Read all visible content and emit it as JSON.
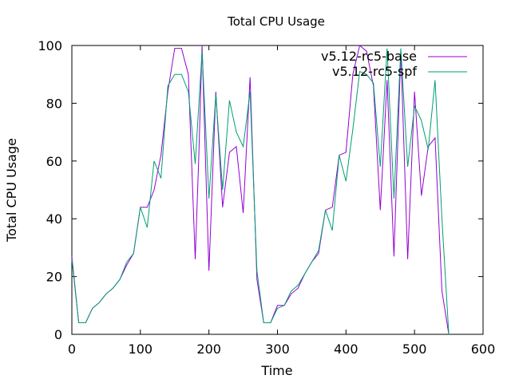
{
  "chart_data": {
    "type": "line",
    "title": "Total CPU Usage",
    "xlabel": "Time",
    "ylabel": "Total CPU Usage",
    "xlim": [
      0,
      600
    ],
    "ylim": [
      0,
      100
    ],
    "xticks": [
      0,
      100,
      200,
      300,
      400,
      500,
      600
    ],
    "yticks": [
      0,
      20,
      40,
      60,
      80,
      100
    ],
    "grid": false,
    "legend_position": "top-right",
    "series": [
      {
        "name": "v5.12-rc5-base",
        "color": "#9400d3",
        "x": [
          0,
          10,
          20,
          30,
          40,
          50,
          60,
          70,
          80,
          90,
          100,
          110,
          120,
          130,
          140,
          150,
          160,
          170,
          180,
          185,
          190,
          195,
          200,
          210,
          220,
          230,
          240,
          250,
          260,
          270,
          280,
          290,
          300,
          310,
          320,
          330,
          340,
          350,
          360,
          370,
          380,
          390,
          400,
          410,
          420,
          430,
          440,
          450,
          460,
          470,
          480,
          490,
          500,
          510,
          520,
          530,
          540,
          550
        ],
        "y": [
          27,
          4,
          4,
          9,
          11,
          14,
          16,
          19,
          24,
          28,
          44,
          44,
          50,
          62,
          84,
          99,
          99,
          90,
          26,
          60,
          100,
          60,
          22,
          84,
          44,
          63,
          65,
          42,
          89,
          19,
          4,
          4,
          10,
          10,
          14,
          16,
          21,
          25,
          28,
          43,
          44,
          62,
          63,
          90,
          100,
          98,
          86,
          43,
          88,
          27,
          98,
          26,
          84,
          48,
          65,
          68,
          15,
          0
        ]
      },
      {
        "name": "v5.12-rc5-spf",
        "color": "#009e73",
        "x": [
          0,
          10,
          20,
          30,
          40,
          50,
          60,
          70,
          80,
          90,
          100,
          110,
          120,
          130,
          140,
          150,
          160,
          170,
          180,
          190,
          200,
          210,
          220,
          230,
          240,
          250,
          260,
          270,
          280,
          290,
          300,
          310,
          320,
          330,
          340,
          350,
          360,
          370,
          380,
          390,
          400,
          410,
          420,
          430,
          440,
          450,
          460,
          470,
          480,
          490,
          500,
          510,
          520,
          530,
          540,
          550
        ],
        "y": [
          26,
          4,
          4,
          9,
          11,
          14,
          16,
          19,
          25,
          28,
          44,
          37,
          60,
          54,
          86,
          90,
          90,
          84,
          59,
          98,
          47,
          83,
          50,
          81,
          70,
          65,
          84,
          22,
          4,
          4,
          9,
          10,
          15,
          17,
          21,
          25,
          29,
          43,
          36,
          62,
          53,
          71,
          91,
          90,
          87,
          58,
          99,
          47,
          99,
          58,
          79,
          74,
          64,
          88,
          40,
          0
        ]
      }
    ]
  }
}
